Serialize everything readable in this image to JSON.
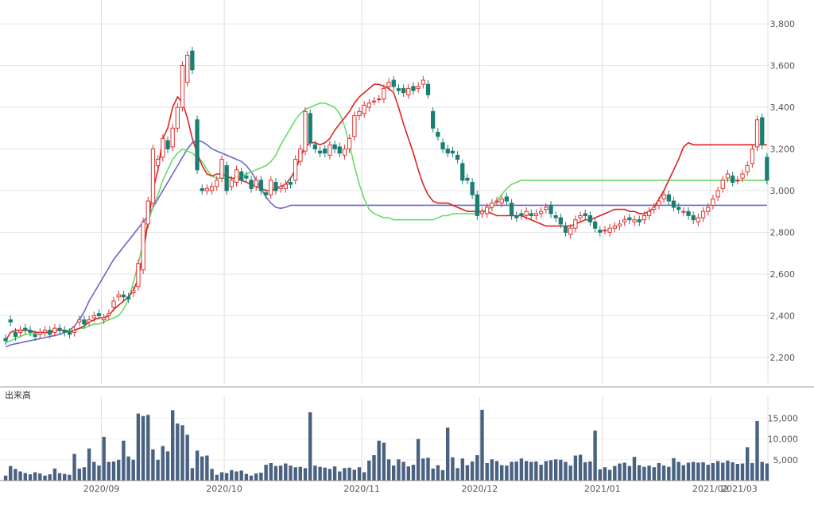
{
  "chart_data": [
    {
      "type": "candlestick",
      "ylim": [
        2150,
        3850
      ],
      "y_ticks": [
        "2,200",
        "2,400",
        "2,600",
        "2,800",
        "3,000",
        "3,200",
        "3,400",
        "3,600",
        "3,800"
      ],
      "y_tick_values": [
        2200,
        2400,
        2600,
        2800,
        3000,
        3200,
        3400,
        3600,
        3800
      ],
      "grid": true,
      "colors": {
        "up": "#e03030",
        "down": "#1a7f72",
        "ma_short": "#dd2222",
        "ma_mid": "#66dd66",
        "ma_long": "#6666cc"
      },
      "close": [
        2280,
        2370,
        2300,
        2330,
        2330,
        2320,
        2300,
        2320,
        2330,
        2310,
        2340,
        2330,
        2320,
        2310,
        2330,
        2380,
        2360,
        2380,
        2400,
        2400,
        2390,
        2410,
        2470,
        2500,
        2490,
        2480,
        2520,
        2650,
        2850,
        2950,
        3200,
        3150,
        3250,
        3200,
        3300,
        3400,
        3600,
        3650,
        3580,
        3100,
        3000,
        3010,
        3020,
        3050,
        3150,
        3000,
        3050,
        3100,
        3050,
        3060,
        3010,
        3050,
        3000,
        2980,
        3050,
        3000,
        3020,
        3030,
        3030,
        3150,
        3200,
        3380,
        3230,
        3200,
        3180,
        3180,
        3220,
        3200,
        3180,
        3200,
        3250,
        3360,
        3380,
        3410,
        3420,
        3430,
        3440,
        3490,
        3520,
        3500,
        3480,
        3470,
        3490,
        3480,
        3500,
        3530,
        3460,
        3300,
        3260,
        3200,
        3180,
        3180,
        3150,
        3050,
        3050,
        2980,
        2880,
        2900,
        2920,
        2940,
        2950,
        2960,
        2950,
        2880,
        2870,
        2880,
        2900,
        2880,
        2890,
        2900,
        2920,
        2890,
        2870,
        2840,
        2800,
        2820,
        2860,
        2880,
        2880,
        2850,
        2820,
        2800,
        2810,
        2820,
        2830,
        2840,
        2860,
        2860,
        2860,
        2850,
        2880,
        2900,
        2920,
        2950,
        2980,
        2950,
        2920,
        2910,
        2900,
        2880,
        2860,
        2870,
        2900,
        2920,
        2960,
        3000,
        3050,
        3080,
        3040,
        3050,
        3080,
        3120,
        3200,
        3340,
        3220,
        3050
      ],
      "open": [
        2290,
        2380,
        2320,
        2320,
        2340,
        2330,
        2310,
        2310,
        2320,
        2330,
        2320,
        2340,
        2330,
        2320,
        2320,
        2370,
        2380,
        2370,
        2390,
        2410,
        2380,
        2400,
        2440,
        2490,
        2500,
        2490,
        2510,
        2540,
        2620,
        2840,
        2940,
        3120,
        3160,
        3240,
        3210,
        3300,
        3400,
        3520,
        3670,
        3340,
        3010,
        3000,
        3000,
        3020,
        3060,
        3120,
        3020,
        3040,
        3090,
        3070,
        3050,
        3020,
        3050,
        2990,
        2980,
        3040,
        3010,
        3010,
        3040,
        3050,
        3140,
        3190,
        3370,
        3220,
        3190,
        3200,
        3170,
        3220,
        3210,
        3170,
        3200,
        3260,
        3360,
        3370,
        3400,
        3430,
        3440,
        3440,
        3500,
        3530,
        3490,
        3490,
        3460,
        3500,
        3490,
        3510,
        3510,
        3380,
        3280,
        3230,
        3200,
        3190,
        3170,
        3130,
        3060,
        3040,
        2980,
        2890,
        2890,
        2920,
        2950,
        2940,
        2970,
        2940,
        2880,
        2890,
        2880,
        2890,
        2880,
        2890,
        2910,
        2930,
        2880,
        2870,
        2830,
        2790,
        2820,
        2870,
        2890,
        2880,
        2850,
        2810,
        2810,
        2800,
        2820,
        2830,
        2850,
        2870,
        2850,
        2860,
        2860,
        2880,
        2910,
        2930,
        2960,
        2980,
        2950,
        2920,
        2900,
        2900,
        2880,
        2850,
        2870,
        2900,
        2930,
        2970,
        3010,
        3060,
        3070,
        3050,
        3060,
        3090,
        3130,
        3210,
        3350,
        3160
      ],
      "ma_short": [
        2280,
        2320,
        2330,
        2330,
        2330,
        2330,
        2320,
        2320,
        2320,
        2320,
        2330,
        2330,
        2330,
        2320,
        2330,
        2340,
        2350,
        2370,
        2380,
        2390,
        2390,
        2400,
        2430,
        2450,
        2470,
        2490,
        2520,
        2580,
        2700,
        2850,
        3000,
        3100,
        3250,
        3300,
        3400,
        3450,
        3420,
        3350,
        3250,
        3180,
        3120,
        3080,
        3070,
        3080,
        3080,
        3070,
        3060,
        3060,
        3050,
        3040,
        3030,
        3020,
        3010,
        3000,
        3000,
        3010,
        3020,
        3030,
        3060,
        3100,
        3160,
        3210,
        3230,
        3230,
        3220,
        3230,
        3250,
        3290,
        3320,
        3350,
        3380,
        3420,
        3450,
        3470,
        3490,
        3510,
        3510,
        3500,
        3490,
        3470,
        3400,
        3320,
        3250,
        3180,
        3100,
        3030,
        2980,
        2950,
        2940,
        2940,
        2940,
        2930,
        2920,
        2910,
        2900,
        2900,
        2900,
        2900,
        2900,
        2890,
        2880,
        2880,
        2880,
        2880,
        2880,
        2880,
        2870,
        2860,
        2850,
        2840,
        2830,
        2830,
        2830,
        2830,
        2830,
        2830,
        2840,
        2850,
        2860,
        2860,
        2870,
        2880,
        2890,
        2900,
        2910,
        2910,
        2910,
        2900,
        2900,
        2890,
        2890,
        2900,
        2920,
        2960,
        3000,
        3050,
        3100,
        3150,
        3210,
        3230,
        3220,
        3220,
        3220,
        3220,
        3220,
        3220,
        3220,
        3220,
        3220,
        3220,
        3220,
        3220,
        3220,
        3220,
        3220,
        3220
      ],
      "ma_mid": [
        2270,
        2280,
        2290,
        2300,
        2310,
        2310,
        2320,
        2320,
        2320,
        2320,
        2330,
        2330,
        2330,
        2330,
        2330,
        2340,
        2340,
        2350,
        2360,
        2360,
        2370,
        2380,
        2390,
        2400,
        2430,
        2480,
        2560,
        2650,
        2750,
        2850,
        2920,
        2980,
        3050,
        3100,
        3150,
        3180,
        3200,
        3190,
        3180,
        3160,
        3140,
        3100,
        3070,
        3060,
        3060,
        3060,
        3060,
        3060,
        3070,
        3080,
        3090,
        3100,
        3110,
        3120,
        3140,
        3170,
        3220,
        3260,
        3300,
        3340,
        3370,
        3390,
        3400,
        3410,
        3420,
        3420,
        3410,
        3400,
        3370,
        3310,
        3220,
        3120,
        3030,
        2960,
        2910,
        2890,
        2880,
        2870,
        2870,
        2860,
        2860,
        2860,
        2860,
        2860,
        2860,
        2860,
        2860,
        2860,
        2870,
        2880,
        2880,
        2890,
        2890,
        2890,
        2890,
        2890,
        2890,
        2900,
        2910,
        2920,
        2950,
        2980,
        3010,
        3030,
        3040,
        3050,
        3050,
        3050,
        3050,
        3050,
        3050,
        3050,
        3050,
        3050,
        3050,
        3050,
        3050,
        3050,
        3050,
        3050,
        3050,
        3050,
        3050,
        3050,
        3050,
        3050,
        3050,
        3050,
        3050,
        3050,
        3050,
        3050,
        3050,
        3050,
        3050,
        3050,
        3050,
        3050,
        3050,
        3050,
        3050,
        3050,
        3050,
        3050,
        3050,
        3050,
        3050,
        3050,
        3050,
        3050,
        3050,
        3050,
        3050,
        3050,
        3050,
        3050
      ],
      "ma_long": [
        2250,
        2260,
        2265,
        2270,
        2275,
        2280,
        2285,
        2290,
        2295,
        2300,
        2305,
        2310,
        2320,
        2330,
        2350,
        2380,
        2420,
        2470,
        2510,
        2550,
        2590,
        2630,
        2670,
        2700,
        2730,
        2760,
        2790,
        2820,
        2850,
        2880,
        2920,
        2960,
        3000,
        3040,
        3080,
        3120,
        3160,
        3200,
        3230,
        3240,
        3235,
        3220,
        3200,
        3190,
        3180,
        3170,
        3160,
        3150,
        3140,
        3120,
        3090,
        3050,
        3010,
        2970,
        2940,
        2920,
        2915,
        2920,
        2930,
        2930,
        2930,
        2930,
        2930,
        2930,
        2930,
        2930,
        2930,
        2930,
        2930,
        2930,
        2930,
        2930,
        2930,
        2930,
        2930,
        2930,
        2930,
        2930,
        2930,
        2930,
        2930,
        2930,
        2930,
        2930,
        2930,
        2930,
        2930,
        2930,
        2930,
        2930,
        2930,
        2930,
        2930,
        2930,
        2930,
        2930,
        2930,
        2930,
        2930,
        2930,
        2930,
        2930,
        2930,
        2930,
        2930,
        2930,
        2930,
        2930,
        2930,
        2930,
        2930,
        2930,
        2930,
        2930,
        2930,
        2930,
        2930,
        2930,
        2930,
        2930,
        2930,
        2930,
        2930,
        2930,
        2930,
        2930,
        2930,
        2930,
        2930,
        2930,
        2930,
        2930,
        2930,
        2930,
        2930,
        2930,
        2930,
        2930,
        2930,
        2930,
        2930,
        2930,
        2930,
        2930,
        2930,
        2930,
        2930,
        2930,
        2930,
        2930,
        2930,
        2930,
        2930,
        2930,
        2930,
        2930,
        2930
      ]
    },
    {
      "type": "bar",
      "title": "出来高",
      "x_labels": [
        "2020/09",
        "2020/10",
        "2020/11",
        "2020/12",
        "2021/01",
        "2021/02",
        "2021/03"
      ],
      "y_ticks": [
        "5,000",
        "10,000",
        "15,000"
      ],
      "y_tick_values": [
        5000,
        10000,
        15000
      ],
      "ylim": [
        0,
        18500
      ],
      "values": [
        1200,
        3500,
        2800,
        2200,
        1800,
        1500,
        2000,
        1700,
        1200,
        1500,
        2900,
        1800,
        1600,
        1400,
        6400,
        2900,
        3200,
        7700,
        4500,
        3600,
        10500,
        4500,
        4600,
        5000,
        9600,
        5800,
        5000,
        16100,
        15500,
        15800,
        7500,
        5000,
        8300,
        7000,
        16900,
        13700,
        13300,
        11000,
        3000,
        7200,
        5800,
        6000,
        2800,
        1400,
        2000,
        1800,
        2500,
        2200,
        2400,
        1600,
        1200,
        1700,
        1900,
        3800,
        4200,
        3500,
        3600,
        4100,
        3600,
        3200,
        3300,
        3000,
        16400,
        3600,
        3300,
        3100,
        2800,
        3400,
        2200,
        3000,
        3100,
        2600,
        3200,
        2000,
        4800,
        6100,
        9600,
        9100,
        5100,
        3600,
        5100,
        4500,
        3400,
        3800,
        10000,
        5300,
        5500,
        2900,
        3700,
        2500,
        12700,
        5600,
        3000,
        5300,
        3700,
        4600,
        6100,
        17000,
        4200,
        5100,
        4700,
        3700,
        3600,
        4500,
        4600,
        5300,
        4700,
        4500,
        4600,
        3800,
        4700,
        4900,
        5100,
        5000,
        4500,
        3600,
        6000,
        6200,
        4400,
        4600,
        12000,
        2700,
        3200,
        2600,
        3500,
        4100,
        4300,
        3500,
        5700,
        3700,
        3300,
        3600,
        3200,
        4200,
        3600,
        3300,
        5400,
        4500,
        3700,
        4300,
        4500,
        4300,
        4400,
        3800,
        4200,
        4700,
        4300,
        4800,
        4400,
        4000,
        4100,
        8000,
        4200,
        14300,
        4500,
        4100,
        6300
      ]
    }
  ]
}
